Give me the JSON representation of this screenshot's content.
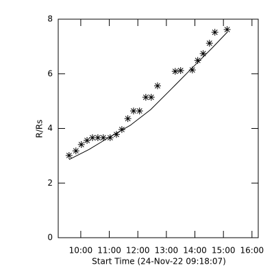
{
  "chart_data": {
    "type": "scatter",
    "xlabel": "Start Time (24-Nov-22 09:18:07)",
    "ylabel": "R/Rs",
    "x": [
      9.59,
      9.83,
      10.02,
      10.22,
      10.41,
      10.6,
      10.79,
      11.03,
      11.25,
      11.44,
      11.65,
      11.85,
      12.06,
      12.28,
      12.47,
      12.69,
      13.31,
      13.5,
      13.91,
      14.1,
      14.29,
      14.51,
      14.7,
      15.13
    ],
    "values": [
      3.01,
      3.18,
      3.41,
      3.56,
      3.66,
      3.66,
      3.66,
      3.66,
      3.78,
      3.96,
      4.36,
      4.64,
      4.64,
      5.14,
      5.14,
      5.56,
      6.09,
      6.12,
      6.14,
      6.49,
      6.74,
      7.12,
      7.52,
      7.62
    ],
    "color": "#000000",
    "fit_line": {
      "x": [
        9.59,
        10.29,
        11.0,
        11.73,
        12.45,
        13.17,
        13.88,
        14.6,
        15.13
      ],
      "values": [
        2.86,
        3.23,
        3.68,
        4.11,
        4.69,
        5.44,
        6.19,
        6.94,
        7.52
      ]
    },
    "xlim": [
      9.21,
      16.22
    ],
    "xticks": [
      {
        "value": 10,
        "label": "10:00"
      },
      {
        "value": 11,
        "label": "11:00"
      },
      {
        "value": 12,
        "label": "12:00"
      },
      {
        "value": 13,
        "label": "13:00"
      },
      {
        "value": 14,
        "label": "14:00"
      },
      {
        "value": 15,
        "label": "15:00"
      },
      {
        "value": 16,
        "label": "16:00"
      }
    ],
    "ylim": [
      0,
      8
    ],
    "yticks": [
      0,
      2,
      4,
      6,
      8
    ]
  }
}
